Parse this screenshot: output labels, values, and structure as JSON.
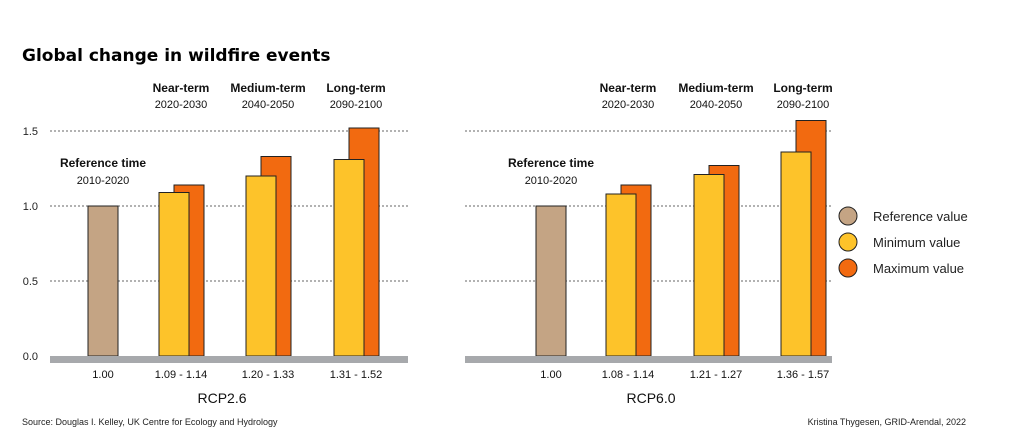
{
  "title": "Global change in wildfire events",
  "source": "Source: Douglas I. Kelley, UK Centre for Ecology and Hydrology",
  "credit": "Kristina Thygesen, GRID-Arendal, 2022",
  "colors": {
    "reference": "#c4a484",
    "minimum": "#fdc32a",
    "maximum": "#f26a10",
    "baseline": "#a7a9ac",
    "outline": "#222222"
  },
  "legend": [
    {
      "label": "Reference value",
      "color": "#c4a484"
    },
    {
      "label": "Minimum value",
      "color": "#fdc32a"
    },
    {
      "label": "Maximum value",
      "color": "#f26a10"
    }
  ],
  "chart_data": [
    {
      "type": "bar",
      "title": "RCP2.6",
      "ylim": [
        0,
        1.5
      ],
      "yticks": [
        "0.0",
        "0.5",
        "1.0",
        "1.5"
      ],
      "grid": true,
      "groups": [
        {
          "header": "Reference time",
          "period": "2010-2020",
          "range_label": "1.00",
          "reference": 1.0
        },
        {
          "header": "Near-term",
          "period": "2020-2030",
          "range_label": "1.09 - 1.14",
          "minimum": 1.09,
          "maximum": 1.14
        },
        {
          "header": "Medium-term",
          "period": "2040-2050",
          "range_label": "1.20 - 1.33",
          "minimum": 1.2,
          "maximum": 1.33
        },
        {
          "header": "Long-term",
          "period": "2090-2100",
          "range_label": "1.31 - 1.52",
          "minimum": 1.31,
          "maximum": 1.52
        }
      ]
    },
    {
      "type": "bar",
      "title": "RCP6.0",
      "ylim": [
        0,
        1.5
      ],
      "grid": true,
      "groups": [
        {
          "header": "Reference time",
          "period": "2010-2020",
          "range_label": "1.00",
          "reference": 1.0
        },
        {
          "header": "Near-term",
          "period": "2020-2030",
          "range_label": "1.08 - 1.14",
          "minimum": 1.08,
          "maximum": 1.14
        },
        {
          "header": "Medium-term",
          "period": "2040-2050",
          "range_label": "1.21 - 1.27",
          "minimum": 1.21,
          "maximum": 1.27
        },
        {
          "header": "Long-term",
          "period": "2090-2100",
          "range_label": "1.36 - 1.57",
          "minimum": 1.36,
          "maximum": 1.57
        }
      ]
    }
  ]
}
